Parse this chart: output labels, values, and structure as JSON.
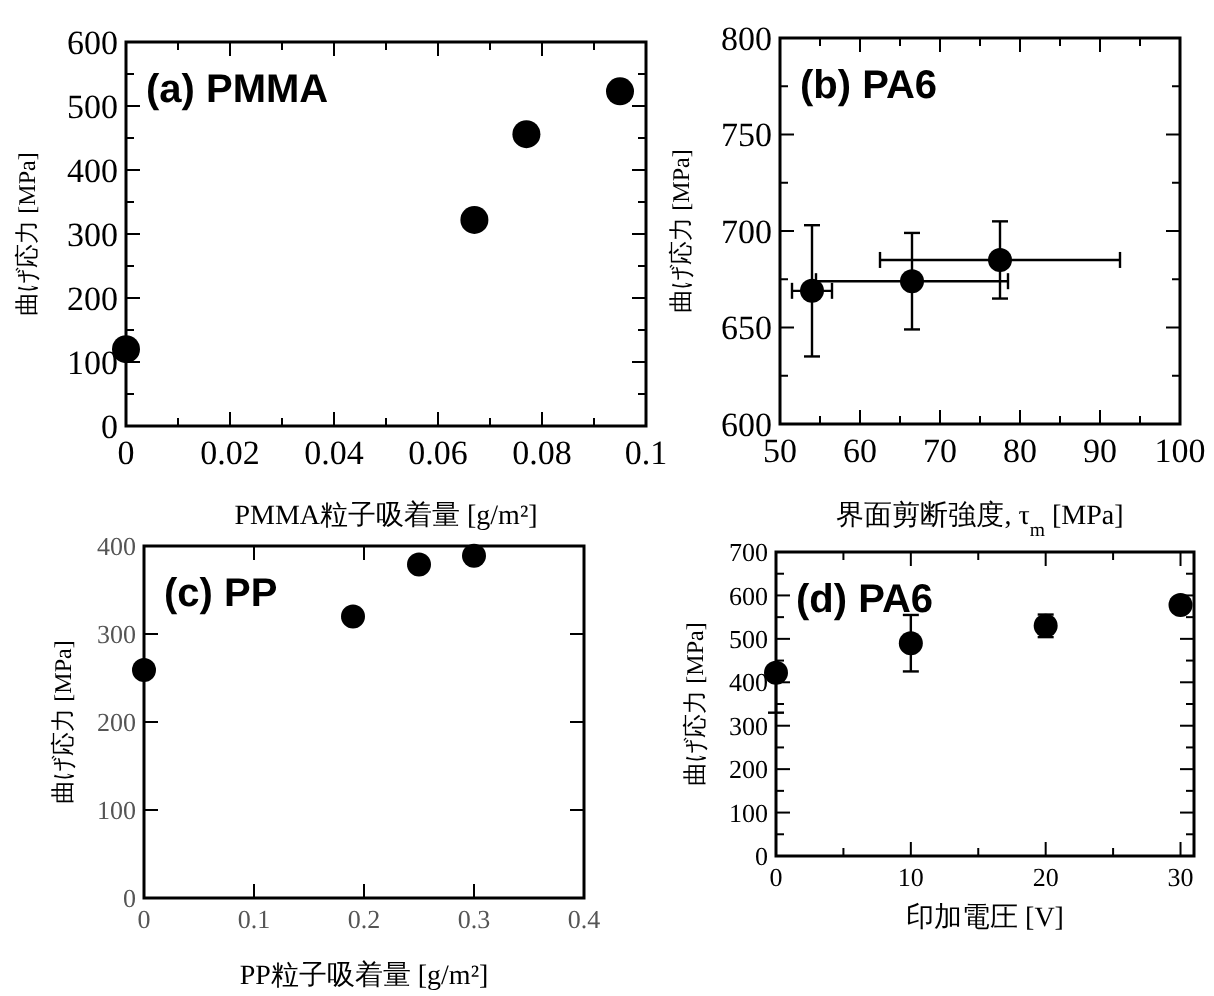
{
  "chart_data": [
    {
      "type": "scatter",
      "annotations": [
        "(a) PMMA"
      ],
      "xlabel": "PMMA粒子吸着量 [g/m²]",
      "ylabel": "曲げ応力 [MPa]",
      "x": [
        0,
        0.067,
        0.077,
        0.095
      ],
      "series": [
        {
          "color": "#000000",
          "values": [
            120,
            322,
            456,
            523
          ],
          "errors": [
            8,
            12,
            8,
            10
          ]
        }
      ],
      "xlim": [
        0,
        0.1
      ],
      "ylim": [
        0,
        600
      ],
      "xticks": [
        0,
        {
          "value": 0.01,
          "label": null
        },
        0.02,
        {
          "value": 0.03,
          "label": null
        },
        0.04,
        {
          "value": 0.05,
          "label": null
        },
        0.06,
        {
          "value": 0.07,
          "label": null
        },
        0.08,
        {
          "value": 0.09,
          "label": null
        },
        0.1
      ],
      "yticks": [
        0,
        {
          "value": 50,
          "label": null
        },
        100,
        {
          "value": 150,
          "label": null
        },
        200,
        {
          "value": 250,
          "label": null
        },
        300,
        {
          "value": 350,
          "label": null
        },
        400,
        {
          "value": 450,
          "label": null
        },
        500,
        {
          "value": 550,
          "label": null
        },
        600
      ],
      "marker": "circle",
      "grid": false
    },
    {
      "type": "scatter",
      "annotations": [
        "(b) PA6"
      ],
      "xlabel": "界面剪断強度, τ$_{m}$ [MPa]",
      "ylabel": "曲げ応力 [MPa]",
      "x": [
        54,
        66.5,
        77.5
      ],
      "series": [
        {
          "color": "#000000",
          "values": [
            669,
            674,
            685
          ],
          "errors": [
            34,
            25,
            20
          ],
          "xerrors": [
            2.5,
            12,
            15
          ]
        }
      ],
      "xlim": [
        50,
        100
      ],
      "ylim": [
        600,
        800
      ],
      "xticks": [
        50,
        {
          "value": 55,
          "label": null
        },
        60,
        {
          "value": 65,
          "label": null
        },
        70,
        {
          "value": 75,
          "label": null
        },
        80,
        {
          "value": 85,
          "label": null
        },
        90,
        {
          "value": 95,
          "label": null
        },
        100
      ],
      "yticks": [
        600,
        {
          "value": 625,
          "label": null
        },
        650,
        {
          "value": 675,
          "label": null
        },
        700,
        {
          "value": 725,
          "label": null
        },
        750,
        {
          "value": 775,
          "label": null
        },
        800
      ],
      "marker": "circle",
      "grid": false
    },
    {
      "type": "scatter",
      "annotations": [
        "(c) PP"
      ],
      "xlabel": "PP粒子吸着量 [g/m²]",
      "ylabel": "曲げ応力 [MPa]",
      "x": [
        0,
        0.19,
        0.25,
        0.3
      ],
      "series": [
        {
          "color": "#000000",
          "values": [
            259,
            320,
            379,
            389
          ]
        }
      ],
      "xlim": [
        0,
        0.4
      ],
      "ylim": [
        0,
        400
      ],
      "xticks": [
        0,
        0.1,
        0.2,
        0.3,
        0.4
      ],
      "yticks": [
        0,
        100,
        200,
        300,
        400
      ],
      "marker": "circle",
      "grid": false
    },
    {
      "type": "scatter",
      "annotations": [
        "(d) PA6"
      ],
      "xlabel": "印加電圧 [V]",
      "ylabel": "曲げ応力 [MPa]",
      "x": [
        0,
        10,
        20,
        30
      ],
      "series": [
        {
          "color": "#000000",
          "values": [
            422,
            490,
            530,
            578
          ],
          "errors": [
            [
              330,
              422
            ],
            65,
            26,
            10
          ]
        }
      ],
      "xlim": [
        0,
        31
      ],
      "ylim": [
        0,
        700
      ],
      "xticks": [
        0,
        {
          "value": 5,
          "label": null
        },
        10,
        {
          "value": 15,
          "label": null
        },
        20,
        {
          "value": 25,
          "label": null
        },
        30
      ],
      "yticks": [
        0,
        {
          "value": 50,
          "label": null
        },
        100,
        {
          "value": 150,
          "label": null
        },
        200,
        {
          "value": 250,
          "label": null
        },
        300,
        {
          "value": 350,
          "label": null
        },
        400,
        {
          "value": 450,
          "label": null
        },
        500,
        {
          "value": 550,
          "label": null
        },
        600,
        {
          "value": 650,
          "label": null
        },
        700
      ],
      "marker": "circle",
      "grid": false
    }
  ]
}
